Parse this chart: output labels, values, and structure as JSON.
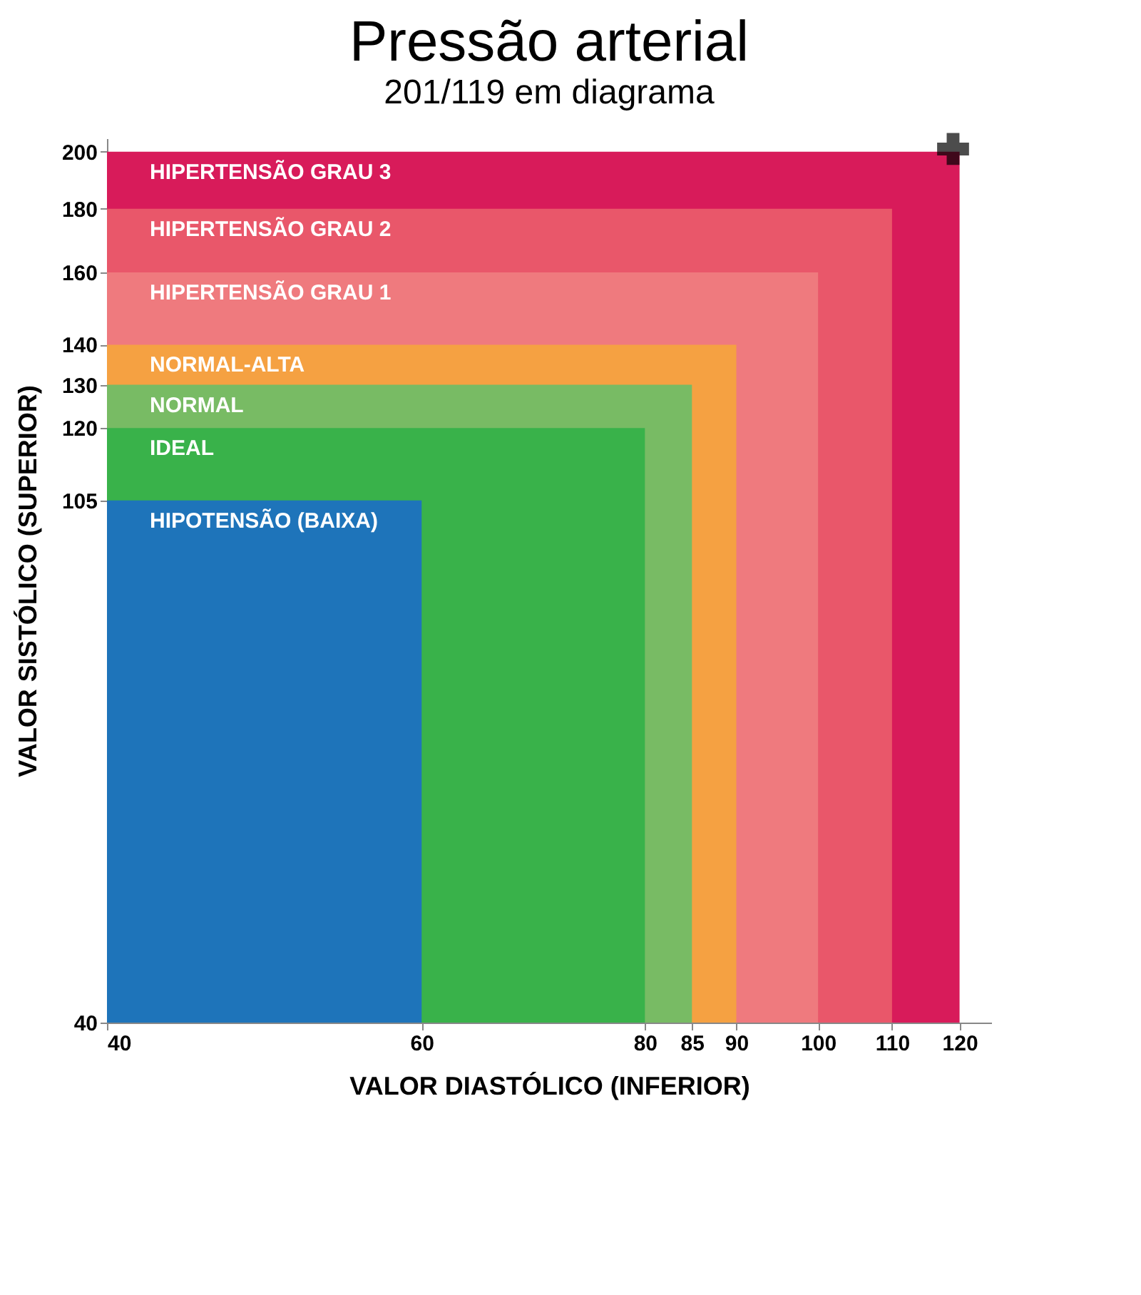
{
  "chart_data": {
    "type": "area",
    "title": "Pressão arterial",
    "subtitle": "201/119 em diagrama",
    "xlabel": "VALOR DIASTÓLICO (INFERIOR)",
    "ylabel": "VALOR SISTÓLICO (SUPERIOR)",
    "xlim": [
      40,
      125
    ],
    "ylim": [
      40,
      205
    ],
    "xticks": [
      40,
      60,
      80,
      85,
      90,
      100,
      110,
      120
    ],
    "yticks": [
      40,
      105,
      120,
      130,
      140,
      160,
      180,
      200
    ],
    "log": "xy",
    "grid": false,
    "series": [
      {
        "name": "HIPERTENSÃO GRAU 3",
        "color": "#d81b5a",
        "x": [
          40,
          120
        ],
        "values": [
          200,
          200
        ]
      },
      {
        "name": "HIPERTENSÃO GRAU 2",
        "color": "#e9576a",
        "x": [
          40,
          110
        ],
        "values": [
          180,
          180
        ]
      },
      {
        "name": "HIPERTENSÃO GRAU 1",
        "color": "#ef7a7e",
        "x": [
          40,
          100
        ],
        "values": [
          160,
          160
        ]
      },
      {
        "name": "NORMAL-ALTA",
        "color": "#f5a142",
        "x": [
          40,
          90
        ],
        "values": [
          140,
          140
        ]
      },
      {
        "name": "NORMAL",
        "color": "#78bb64",
        "x": [
          40,
          85
        ],
        "values": [
          130,
          130
        ]
      },
      {
        "name": "IDEAL",
        "color": "#39b24a",
        "x": [
          40,
          80
        ],
        "values": [
          120,
          120
        ]
      },
      {
        "name": "HIPOTENSÃO (BAIXA)",
        "color": "#1e74ba",
        "x": [
          40,
          60
        ],
        "values": [
          105,
          105
        ]
      },
      {
        "type": "scatter",
        "marker": "cross",
        "color": "#000000",
        "x": [
          119
        ],
        "values": [
          201
        ]
      }
    ]
  }
}
